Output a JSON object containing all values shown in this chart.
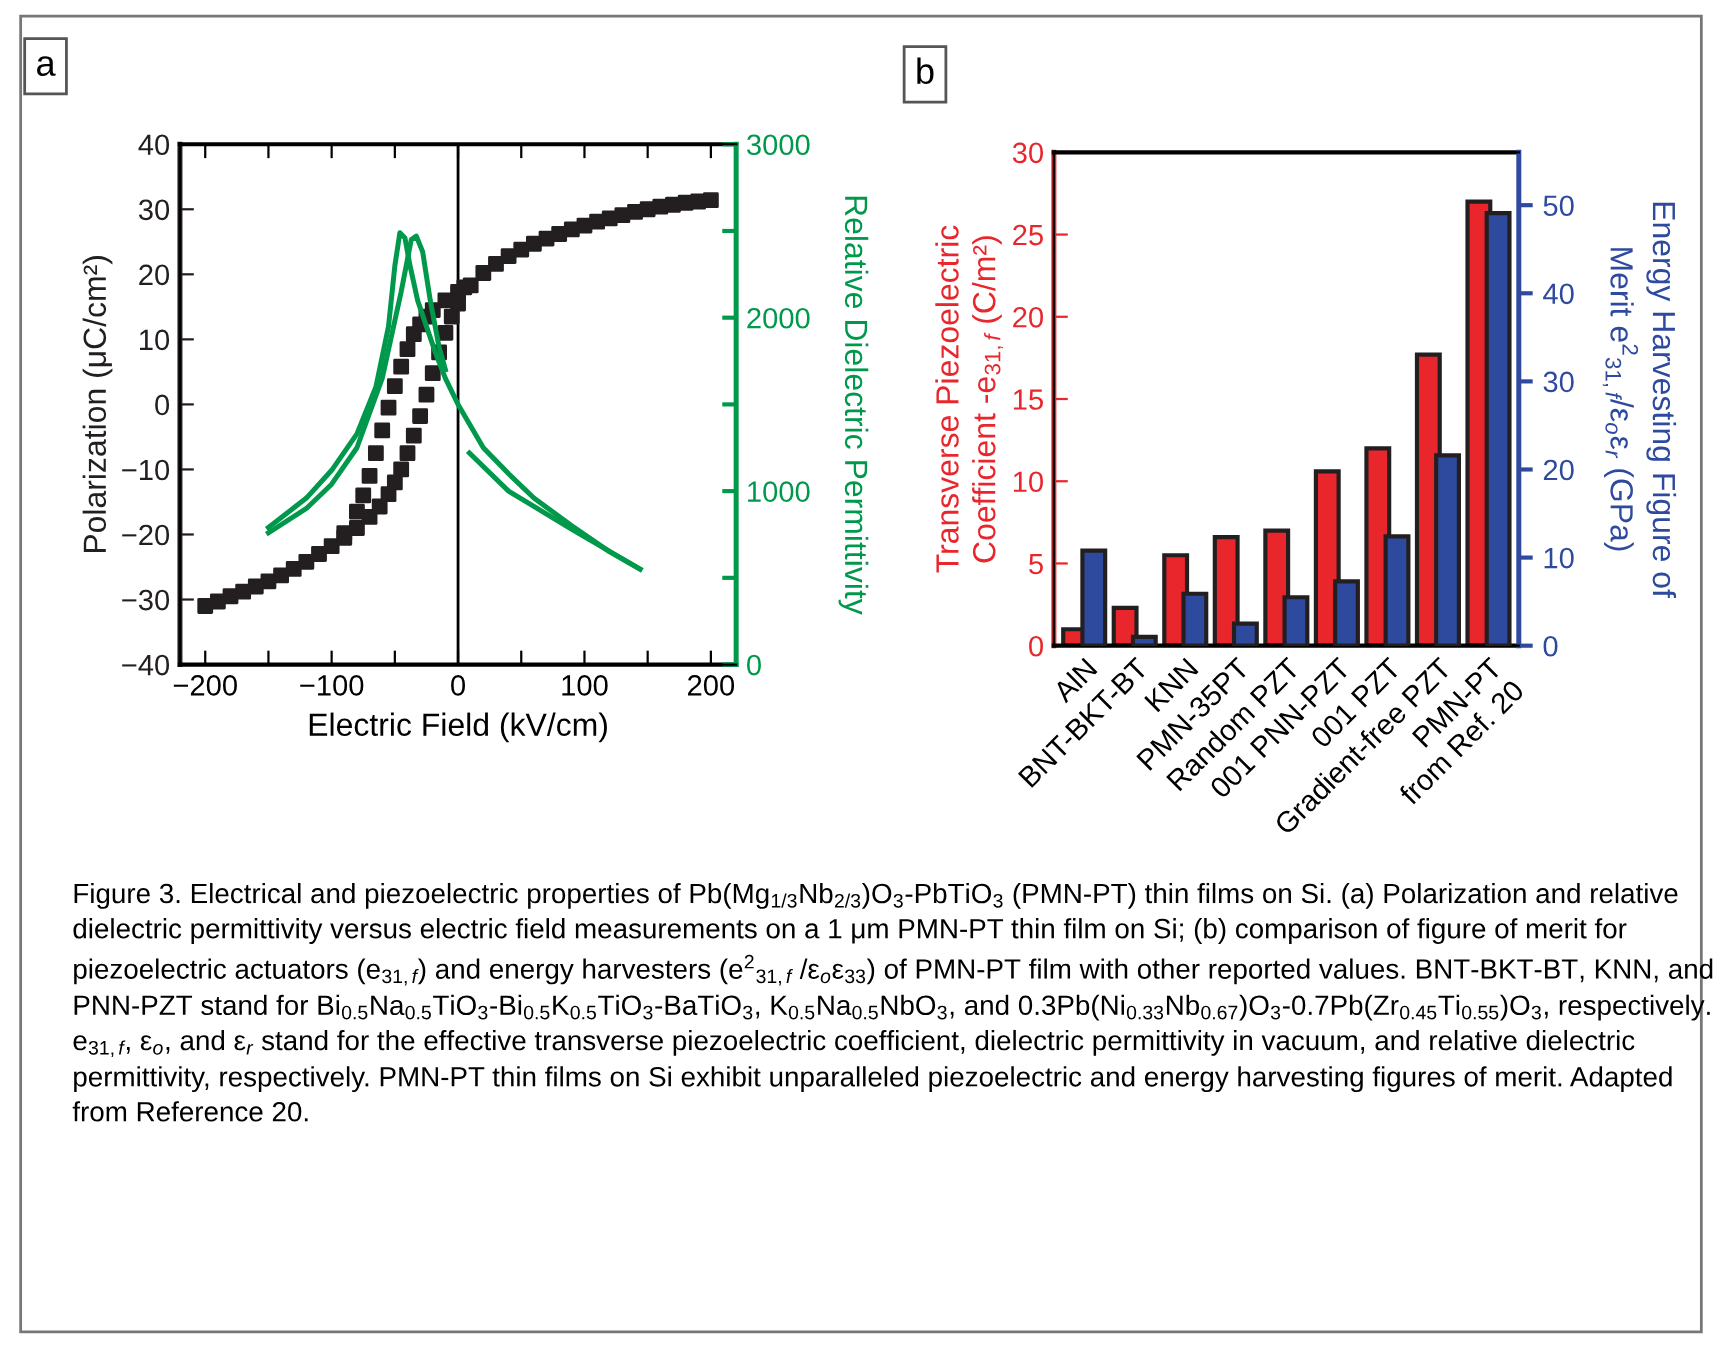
{
  "chart_data": [
    {
      "type": "scatter",
      "xlabel": "Electric Field (kV/cm)",
      "ylabel": "Polarization (μC/cm²)",
      "y2label": "Relative Dielectric Permittivity",
      "xlim": [
        -220,
        220
      ],
      "xticks": [
        -200,
        {
          "value": -150,
          "label": null
        },
        -100,
        {
          "value": -50,
          "label": null
        },
        0,
        {
          "value": 50,
          "label": null
        },
        100,
        {
          "value": 150,
          "label": null
        },
        200
      ],
      "ylim": [
        -40,
        40
      ],
      "yticks": [
        -40,
        -30,
        -20,
        -10,
        0,
        10,
        20,
        30,
        40
      ],
      "y2lim": [
        0,
        3000
      ],
      "y2ticks": [
        0,
        {
          "value": 500,
          "label": null
        },
        1000,
        {
          "value": 1500,
          "label": null
        },
        2000,
        {
          "value": 2500,
          "label": null
        },
        3000
      ],
      "ref_lines": [
        {
          "axis": "x",
          "value": 0,
          "color": "#000000"
        }
      ],
      "series": [
        {
          "type": "scatter",
          "marker": "square",
          "color": "#231f20",
          "x": [
            -200,
            -190,
            -180,
            -170,
            -160,
            -150,
            -140,
            -130,
            -120,
            -110,
            -100,
            -90,
            -80,
            -70,
            -62,
            -55,
            -50,
            -45,
            -40,
            -35,
            -30,
            -25,
            -20,
            -15,
            -10,
            -5,
            0,
            10,
            20,
            30,
            40,
            50,
            60,
            70,
            80,
            90,
            100,
            110,
            120,
            130,
            140,
            150,
            160,
            170,
            180,
            190,
            200,
            5,
            0,
            -10,
            -20,
            -25,
            -30,
            -35,
            -40,
            -45,
            -50,
            -55,
            -60,
            -65,
            -70,
            -75,
            -80,
            -90
          ],
          "values": [
            -31,
            -30.3,
            -29.5,
            -28.8,
            -28,
            -27.2,
            -26.3,
            -25.3,
            -24.2,
            -23,
            -21.8,
            -20.5,
            -19,
            -17.3,
            -15.7,
            -13.8,
            -12,
            -10,
            -7.5,
            -4.8,
            -1.8,
            1.5,
            4.8,
            8,
            11,
            13.5,
            15.5,
            18.3,
            20.2,
            21.6,
            22.8,
            23.8,
            24.7,
            25.5,
            26.2,
            26.9,
            27.5,
            28.1,
            28.6,
            29.1,
            29.6,
            30,
            30.4,
            30.7,
            31,
            31.2,
            31.4,
            18,
            17.3,
            16,
            14.5,
            13.5,
            12.3,
            10.8,
            8.5,
            5.8,
            2.8,
            -0.5,
            -4,
            -7.5,
            -11,
            -14,
            -16.5,
            -19.8
          ]
        },
        {
          "type": "line",
          "axis": "y2",
          "color": "#00994c",
          "x": [
            -150,
            -120,
            -100,
            -80,
            -65,
            -55,
            -50,
            -46,
            -42,
            -38,
            -32,
            -25,
            -18,
            -10,
            0,
            20,
            40,
            60,
            90,
            120,
            144
          ],
          "values": [
            790,
            960,
            1120,
            1330,
            1600,
            1950,
            2300,
            2490,
            2460,
            2300,
            2100,
            1950,
            1800,
            1650,
            1500,
            1250,
            1100,
            960,
            800,
            650,
            550
          ]
        },
        {
          "type": "line",
          "axis": "y2",
          "color": "#00994c",
          "x": [
            -150,
            -120,
            -100,
            -80,
            -60,
            -45,
            -37,
            -33,
            -28,
            -22,
            -15,
            -10,
            0,
            9,
            40,
            90,
            144
          ],
          "values": [
            760,
            900,
            1040,
            1250,
            1650,
            2150,
            2450,
            2470,
            2380,
            2100,
            1830,
            1700,
            null,
            1220,
            1000,
            780,
            550
          ]
        }
      ],
      "annotations": [
        "a",
        "Figure 3. Electrical and piezoelectric properties of Pb(Mg$_{1/3}$Nb$_{2/3}$)O$_{3}$-PbTiO$_{3}$ (PMN-PT) thin films on Si. (a) Polarization and relative dielectric permittivity versus electric field measurements on a 1 μm PMN-PT thin film on Si; (b) comparison of figure of merit for piezoelectric actuators (e$_{31,f}$) and energy harvesters (e$^{2}$$_{31,f}$ /ε$_{o}$ε$_{33}$) of PMN-PT film with other reported values. BNT-BKT-BT, KNN, and PNN-PZT stand for Bi$_{0.5}$Na$_{0.5}$TiO$_{3}$-Bi$_{0.5}$K$_{0.5}$TiO$_{3}$-BaTiO$_{3}$, K$_{0.5}$Na$_{0.5}$NbO$_{3}$, and 0.3Pb(Ni$_{0.33}$Nb$_{0.67}$)O$_{3}$-0.7Pb(Zr$_{0.45}$Ti$_{0.55}$)O$_{3}$, respectively. e$_{31,f}$, ε$_{o}$, and ε$_{r}$ stand for the effective transverse piezoelectric coefficient, dielectric permittivity in vacuum, and relative dielectric permittivity, respectively. PMN-PT thin films on Si exhibit unparalleled piezoelectric and energy harvesting figures of merit. Adapted from Reference 20."
      ]
    },
    {
      "type": "bar",
      "ylabel": "Transverse Piezoelectric\nCoefficient -e$_{31,f}$ (C/m²)",
      "y2label": "Energy Harvesting Figure of\nMerit e$^{2}$$_{31,f}$/ε$_{o}$ε$_{r}$ (GPa)",
      "categories": [
        "AlN",
        "BNT-BKT-BT",
        "KNN",
        "PMN-35PT",
        "Random PZT",
        "001 PNN-PZT",
        "001 PZT",
        "Gradient-free PZT",
        "PMN-PT\nfrom Ref. 20"
      ],
      "ylim": [
        0,
        30
      ],
      "yticks": [
        0,
        5,
        10,
        15,
        20,
        25,
        30
      ],
      "y2lim": [
        0,
        56
      ],
      "y2ticks": [
        0,
        10,
        20,
        30,
        40,
        50
      ],
      "series": [
        {
          "color": "#e8262b",
          "values": [
            1.0,
            2.3,
            5.5,
            6.6,
            7.0,
            10.6,
            12.0,
            17.7,
            27.0
          ]
        },
        {
          "color": "#2e4a9e",
          "axis": "y2",
          "values": [
            10.8,
            1.0,
            5.9,
            2.5,
            5.5,
            7.3,
            12.4,
            21.6,
            49.1
          ]
        }
      ],
      "annotations": [
        "b"
      ]
    }
  ]
}
